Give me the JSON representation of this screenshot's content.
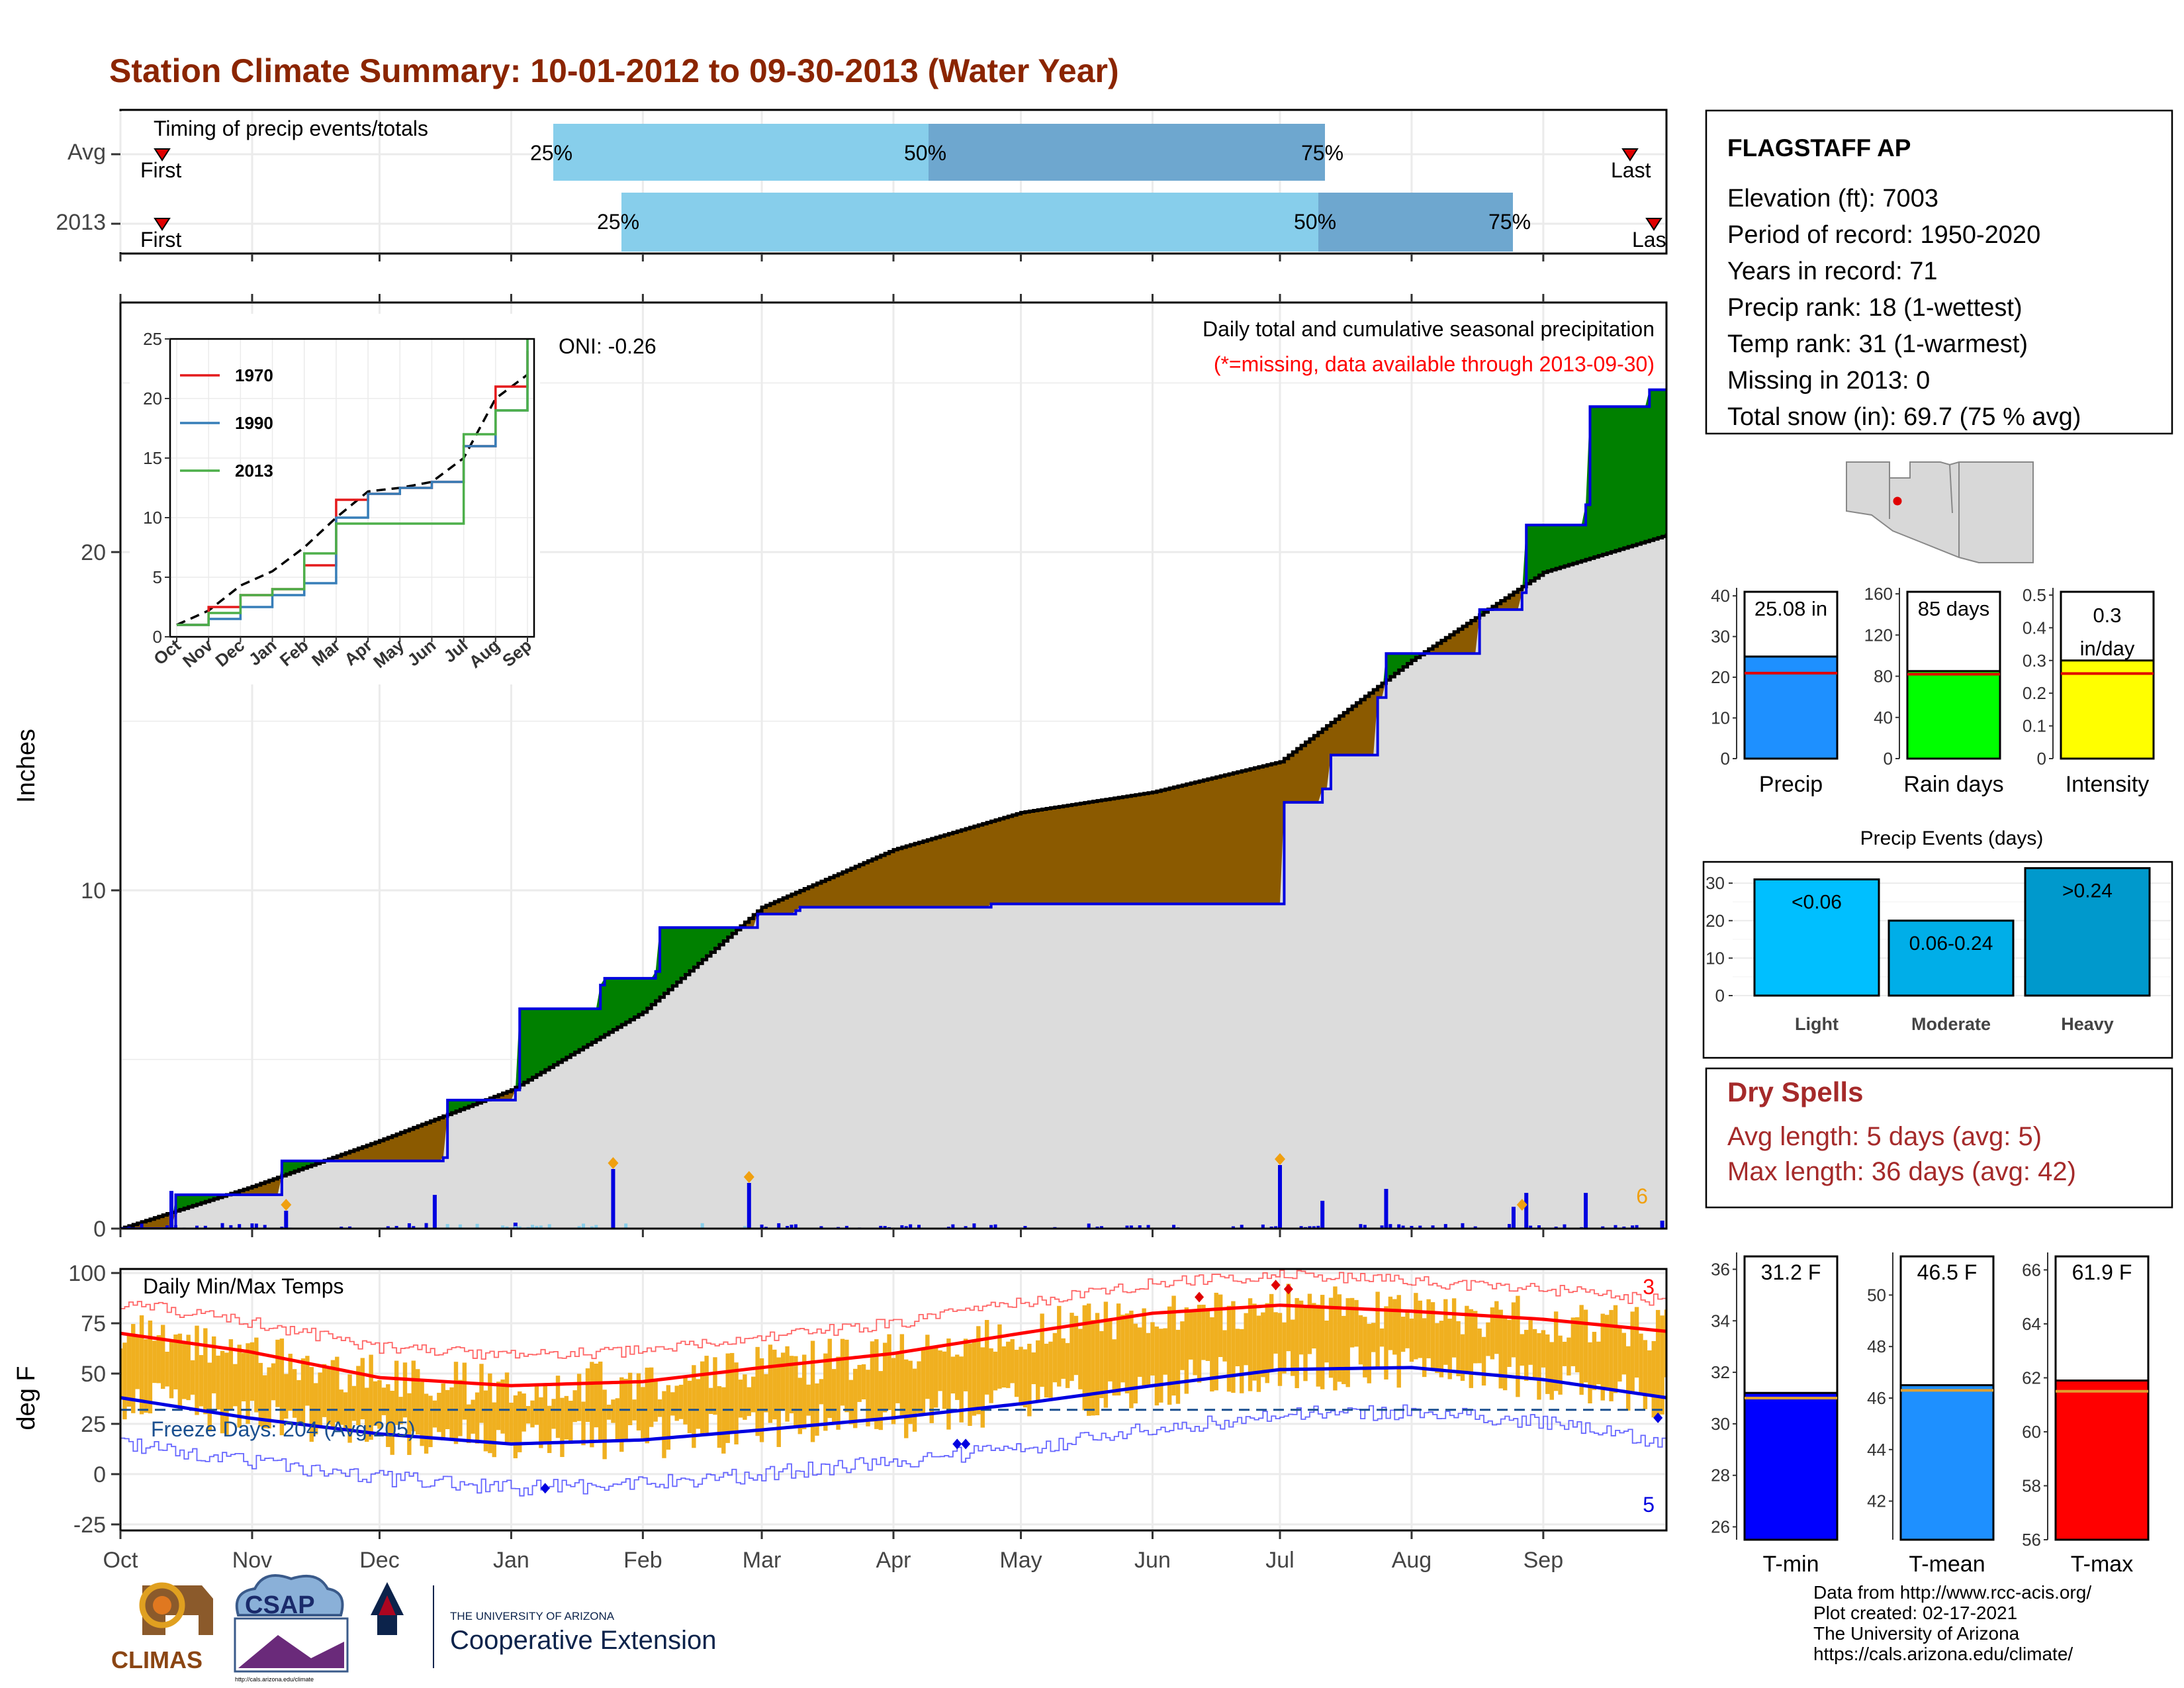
{
  "title": "Station Climate Summary: 10-01-2012 to 09-30-2013 (Water Year)",
  "colors": {
    "title": "#8b2500",
    "brown": "#8b5a00",
    "green": "#008000",
    "gray": "#dcdcdc",
    "blue": "#0000e0",
    "lightblue": "#87ceeb",
    "midblue": "#6ea7cf",
    "orange": "#f0b020",
    "red": "#ff0000",
    "darkred": "#a52a2a"
  },
  "timing": {
    "title": "Timing of precip events/totals",
    "rows": [
      {
        "label": "Avg",
        "first": "First",
        "last": "Last",
        "p25": "25%",
        "p50": "50%",
        "p75": "75%"
      },
      {
        "label": "2013",
        "first": "First",
        "last": "Las",
        "p25": "25%",
        "p50": "50%",
        "p75": "75%"
      }
    ]
  },
  "station": {
    "name": "FLAGSTAFF AP",
    "lines": [
      "Elevation (ft): 7003",
      "Period of record: 1950-2020",
      "Years in record: 71",
      "Precip rank: 18 (1-wettest)",
      "Temp rank: 31 (1-warmest)",
      "Missing in 2013: 0",
      "Total snow (in): 69.7 (75 % avg)"
    ]
  },
  "main": {
    "ylabel": "Inches",
    "oni": "ONI: -0.26",
    "caption1": "Daily total and cumulative seasonal precipitation",
    "caption2": "(*=missing, data available through 2013-09-30)",
    "count_label": "6"
  },
  "temps": {
    "title": "Daily Min/Max Temps",
    "ylabel": "deg F",
    "freeze": "Freeze Days: 204 (Avg:205)",
    "max_count": "3",
    "min_count": "5"
  },
  "months": [
    "Oct",
    "Nov",
    "Dec",
    "Jan",
    "Feb",
    "Mar",
    "Apr",
    "May",
    "Jun",
    "Jul",
    "Aug",
    "Sep"
  ],
  "inset_months": [
    "Oct",
    "Nov",
    "Dec",
    "Jan",
    "Feb",
    "Mar",
    "Apr",
    "May",
    "Jun",
    "Jul",
    "Aug",
    "Sep"
  ],
  "dry": {
    "title": "Dry Spells",
    "line1": "Avg length: 5 days (avg: 5)",
    "line2": "Max length: 36 days (avg: 42)"
  },
  "events_title": "Precip Events (days)",
  "footer": {
    "lines": [
      "Data from http://www.rcc-acis.org/",
      "Plot created: 02-17-2021",
      "The University of Arizona",
      "https://cals.arizona.edu/climate/"
    ]
  },
  "logos": {
    "climas": "CLIMAS",
    "csap": "CSAP",
    "csap_url": "http://cals.arizona.edu/climate",
    "ua1": "THE UNIVERSITY OF ARIZONA",
    "ua2": "Cooperative Extension"
  },
  "chart_data": [
    {
      "type": "area",
      "title": "Daily total and cumulative seasonal precipitation",
      "ylabel": "Inches",
      "ylim": [
        0,
        27.5
      ],
      "x_ticks": [
        "Oct",
        "Nov",
        "Dec",
        "Jan",
        "Feb",
        "Mar",
        "Apr",
        "May",
        "Jun",
        "Jul",
        "Aug",
        "Sep"
      ],
      "y_ticks": [
        0,
        10,
        20
      ],
      "average_cumulative": {
        "day": [
          0,
          30,
          61,
          92,
          123,
          151,
          182,
          212,
          243,
          273,
          304,
          335,
          364
        ],
        "values": [
          0,
          1.2,
          2.6,
          4.1,
          6.4,
          9.5,
          11.2,
          12.3,
          12.9,
          13.8,
          16.8,
          19.4,
          20.5
        ]
      },
      "observed_cumulative": {
        "day": [
          0,
          12,
          13,
          37,
          38,
          76,
          77,
          93,
          94,
          113,
          114,
          126,
          127,
          150,
          151,
          159,
          160,
          198,
          205,
          273,
          274,
          283,
          285,
          296,
          298,
          318,
          320,
          330,
          331,
          345,
          346,
          360,
          364
        ],
        "values": [
          0,
          0,
          1.0,
          1.0,
          2.0,
          2.1,
          3.8,
          4.1,
          6.5,
          7.2,
          7.4,
          7.6,
          8.9,
          9.3,
          9.3,
          9.4,
          9.5,
          9.5,
          9.6,
          9.6,
          12.6,
          13.0,
          14.0,
          15.7,
          17.0,
          17.0,
          18.3,
          18.8,
          20.8,
          21.4,
          24.3,
          24.8,
          24.8
        ]
      },
      "daily_precip": [
        {
          "day": 12,
          "value": 0.95
        },
        {
          "day": 39,
          "value": 0.45
        },
        {
          "day": 74,
          "value": 0.85
        },
        {
          "day": 93,
          "value": 0.15
        },
        {
          "day": 116,
          "value": 1.5
        },
        {
          "day": 148,
          "value": 1.15
        },
        {
          "day": 273,
          "value": 1.6
        },
        {
          "day": 283,
          "value": 0.7
        },
        {
          "day": 298,
          "value": 1.0
        },
        {
          "day": 328,
          "value": 0.55
        },
        {
          "day": 331,
          "value": 0.9
        },
        {
          "day": 345,
          "value": 0.9
        },
        {
          "day": 363,
          "value": 0.2
        }
      ]
    },
    {
      "type": "line",
      "title": "",
      "xlabel": "",
      "ylabel": "",
      "ylim": [
        0,
        25
      ],
      "x": [
        "Oct",
        "Nov",
        "Dec",
        "Jan",
        "Feb",
        "Mar",
        "Apr",
        "May",
        "Jun",
        "Jul",
        "Aug",
        "Sep"
      ],
      "series": [
        {
          "name": "1970",
          "values": [
            1,
            2.5,
            3.5,
            4,
            6,
            11.5,
            12,
            12.5,
            13,
            16,
            21,
            24
          ]
        },
        {
          "name": "1990",
          "values": [
            1,
            1.5,
            2.5,
            3.5,
            4.5,
            10,
            12,
            12.5,
            13,
            16,
            19,
            25
          ]
        },
        {
          "name": "2013",
          "values": [
            1,
            2,
            3.5,
            4,
            7,
            9.5,
            9.5,
            9.5,
            9.5,
            17,
            19,
            25
          ]
        }
      ]
    },
    {
      "type": "bar",
      "categories": [
        "Precip",
        "Rain days",
        "Intensity"
      ],
      "series": [
        {
          "values": [
            25.08,
            85,
            0.3
          ]
        }
      ],
      "averages": [
        21,
        82,
        0.26
      ],
      "labels": [
        "25.08 in",
        "85 days",
        "0.3 in/day"
      ]
    },
    {
      "type": "bar",
      "title": "Precip Events (days)",
      "categories": [
        "Light",
        "Moderate",
        "Heavy"
      ],
      "values": [
        31,
        20,
        34
      ],
      "labels": [
        "<0.06",
        "0.06-0.24",
        ">0.24"
      ],
      "ylim": [
        0,
        35
      ]
    },
    {
      "type": "line",
      "title": "Daily Min/Max Temps",
      "ylabel": "deg F",
      "ylim": [
        -28,
        102
      ],
      "x_ticks": [
        "Oct",
        "Nov",
        "Dec",
        "Jan",
        "Feb",
        "Mar",
        "Apr",
        "May",
        "Jun",
        "Jul",
        "Aug",
        "Sep"
      ],
      "avg_max": {
        "day": [
          0,
          30,
          61,
          92,
          123,
          151,
          182,
          212,
          243,
          273,
          304,
          335,
          364
        ],
        "values": [
          70,
          61,
          48,
          44,
          46,
          53,
          60,
          70,
          80,
          84,
          81,
          77,
          71
        ]
      },
      "avg_min": {
        "day": [
          0,
          30,
          61,
          92,
          123,
          151,
          182,
          212,
          243,
          273,
          304,
          335,
          364
        ],
        "values": [
          38,
          28,
          20,
          15,
          17,
          22,
          28,
          35,
          44,
          52,
          53,
          47,
          38
        ]
      },
      "freeze_line": 32
    },
    {
      "type": "bar",
      "categories": [
        "T-min",
        "T-mean",
        "T-max"
      ],
      "values": [
        31.2,
        46.5,
        61.9
      ],
      "averages": [
        31.0,
        46.3,
        61.5
      ],
      "labels": [
        "31.2 F",
        "46.5 F",
        "61.9 F"
      ]
    }
  ]
}
